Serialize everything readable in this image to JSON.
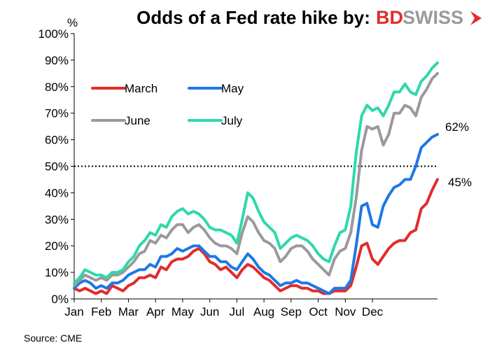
{
  "chart_data": {
    "type": "line",
    "title": "Odds of a Fed rate hike by:",
    "ylabel": "%",
    "ylim": [
      0,
      100
    ],
    "yticks": [
      "0%",
      "10%",
      "20%",
      "30%",
      "40%",
      "50%",
      "60%",
      "70%",
      "80%",
      "90%",
      "100%"
    ],
    "xticks": [
      "Jan",
      "Feb",
      "Mar",
      "Apr",
      "May",
      "Jun",
      "Jul",
      "Aug",
      "Sep",
      "Oct",
      "Nov",
      "Dec"
    ],
    "reference_line": {
      "y": 50,
      "style": "dotted"
    },
    "grid": false,
    "legend_position": "top-left",
    "series": [
      {
        "name": "March",
        "color": "#e32b2b",
        "points": [
          [
            0,
            4
          ],
          [
            0.2,
            3
          ],
          [
            0.4,
            4
          ],
          [
            0.6,
            3
          ],
          [
            0.8,
            2
          ],
          [
            1,
            3
          ],
          [
            1.2,
            2
          ],
          [
            1.4,
            5
          ],
          [
            1.6,
            4
          ],
          [
            1.8,
            3
          ],
          [
            2,
            5
          ],
          [
            2.2,
            6
          ],
          [
            2.4,
            8
          ],
          [
            2.6,
            8
          ],
          [
            2.8,
            9
          ],
          [
            3,
            8
          ],
          [
            3.2,
            12
          ],
          [
            3.4,
            11
          ],
          [
            3.6,
            14
          ],
          [
            3.8,
            15
          ],
          [
            4,
            15
          ],
          [
            4.2,
            16
          ],
          [
            4.4,
            18
          ],
          [
            4.6,
            19
          ],
          [
            4.8,
            17
          ],
          [
            5,
            14
          ],
          [
            5.2,
            13
          ],
          [
            5.4,
            11
          ],
          [
            5.6,
            12
          ],
          [
            5.8,
            10
          ],
          [
            6,
            8
          ],
          [
            6.2,
            11
          ],
          [
            6.4,
            13
          ],
          [
            6.6,
            12
          ],
          [
            6.8,
            10
          ],
          [
            7,
            8
          ],
          [
            7.2,
            7
          ],
          [
            7.4,
            5
          ],
          [
            7.6,
            3
          ],
          [
            7.8,
            4
          ],
          [
            8,
            5
          ],
          [
            8.2,
            5
          ],
          [
            8.4,
            4
          ],
          [
            8.6,
            4
          ],
          [
            8.8,
            3
          ],
          [
            9,
            3
          ],
          [
            9.2,
            2
          ],
          [
            9.4,
            2
          ],
          [
            9.6,
            3
          ],
          [
            9.8,
            3
          ],
          [
            10,
            3
          ],
          [
            10.2,
            5
          ],
          [
            10.4,
            12
          ],
          [
            10.6,
            20
          ],
          [
            10.8,
            21
          ],
          [
            11,
            15
          ],
          [
            11.2,
            13
          ],
          [
            11.4,
            16
          ],
          [
            11.6,
            19
          ],
          [
            11.8,
            21
          ],
          [
            12,
            22
          ],
          [
            12.2,
            22
          ],
          [
            12.4,
            25
          ],
          [
            12.6,
            26
          ],
          [
            12.8,
            34
          ],
          [
            13,
            36
          ],
          [
            13.2,
            41
          ],
          [
            13.4,
            45
          ]
        ]
      },
      {
        "name": "May",
        "color": "#1e78e6",
        "points": [
          [
            0,
            4
          ],
          [
            0.2,
            6
          ],
          [
            0.4,
            7
          ],
          [
            0.6,
            6
          ],
          [
            0.8,
            4
          ],
          [
            1,
            5
          ],
          [
            1.2,
            4
          ],
          [
            1.4,
            6
          ],
          [
            1.6,
            6
          ],
          [
            1.8,
            7
          ],
          [
            2,
            9
          ],
          [
            2.2,
            10
          ],
          [
            2.4,
            11
          ],
          [
            2.6,
            11
          ],
          [
            2.8,
            13
          ],
          [
            3,
            12
          ],
          [
            3.2,
            16
          ],
          [
            3.4,
            16
          ],
          [
            3.6,
            17
          ],
          [
            3.8,
            19
          ],
          [
            4,
            18
          ],
          [
            4.2,
            19
          ],
          [
            4.4,
            20
          ],
          [
            4.6,
            20
          ],
          [
            4.8,
            18
          ],
          [
            5,
            16
          ],
          [
            5.2,
            16
          ],
          [
            5.4,
            14
          ],
          [
            5.6,
            14
          ],
          [
            5.8,
            12
          ],
          [
            6,
            11
          ],
          [
            6.2,
            14
          ],
          [
            6.4,
            17
          ],
          [
            6.6,
            15
          ],
          [
            6.8,
            12
          ],
          [
            7,
            10
          ],
          [
            7.2,
            9
          ],
          [
            7.4,
            7
          ],
          [
            7.6,
            5
          ],
          [
            7.8,
            6
          ],
          [
            8,
            6
          ],
          [
            8.2,
            7
          ],
          [
            8.4,
            6
          ],
          [
            8.6,
            6
          ],
          [
            8.8,
            5
          ],
          [
            9,
            4
          ],
          [
            9.2,
            3
          ],
          [
            9.4,
            2
          ],
          [
            9.6,
            4
          ],
          [
            9.8,
            4
          ],
          [
            10,
            4
          ],
          [
            10.2,
            7
          ],
          [
            10.4,
            20
          ],
          [
            10.6,
            35
          ],
          [
            10.8,
            36
          ],
          [
            11,
            28
          ],
          [
            11.2,
            27
          ],
          [
            11.4,
            35
          ],
          [
            11.6,
            39
          ],
          [
            11.8,
            42
          ],
          [
            12,
            43
          ],
          [
            12.2,
            45
          ],
          [
            12.4,
            45
          ],
          [
            12.6,
            50
          ],
          [
            12.8,
            57
          ],
          [
            13,
            59
          ],
          [
            13.2,
            61
          ],
          [
            13.4,
            62
          ]
        ]
      },
      {
        "name": "June",
        "color": "#9a9a9a",
        "points": [
          [
            0,
            5
          ],
          [
            0.2,
            7
          ],
          [
            0.4,
            9
          ],
          [
            0.6,
            8
          ],
          [
            0.8,
            7
          ],
          [
            1,
            8
          ],
          [
            1.2,
            7
          ],
          [
            1.4,
            9
          ],
          [
            1.6,
            9
          ],
          [
            1.8,
            10
          ],
          [
            2,
            12
          ],
          [
            2.2,
            14
          ],
          [
            2.4,
            17
          ],
          [
            2.6,
            18
          ],
          [
            2.8,
            22
          ],
          [
            3,
            21
          ],
          [
            3.2,
            24
          ],
          [
            3.4,
            23
          ],
          [
            3.6,
            26
          ],
          [
            3.8,
            28
          ],
          [
            4,
            28
          ],
          [
            4.2,
            25
          ],
          [
            4.4,
            27
          ],
          [
            4.6,
            28
          ],
          [
            4.8,
            26
          ],
          [
            5,
            23
          ],
          [
            5.2,
            21
          ],
          [
            5.4,
            20
          ],
          [
            5.6,
            20
          ],
          [
            5.8,
            19
          ],
          [
            6,
            17
          ],
          [
            6.2,
            25
          ],
          [
            6.4,
            31
          ],
          [
            6.6,
            29
          ],
          [
            6.8,
            25
          ],
          [
            7,
            22
          ],
          [
            7.2,
            21
          ],
          [
            7.4,
            19
          ],
          [
            7.6,
            14
          ],
          [
            7.8,
            16
          ],
          [
            8,
            19
          ],
          [
            8.2,
            20
          ],
          [
            8.4,
            20
          ],
          [
            8.6,
            18
          ],
          [
            8.8,
            15
          ],
          [
            9,
            13
          ],
          [
            9.2,
            11
          ],
          [
            9.4,
            9
          ],
          [
            9.6,
            15
          ],
          [
            9.8,
            18
          ],
          [
            10,
            19
          ],
          [
            10.2,
            25
          ],
          [
            10.4,
            38
          ],
          [
            10.6,
            56
          ],
          [
            10.8,
            65
          ],
          [
            11,
            64
          ],
          [
            11.2,
            65
          ],
          [
            11.4,
            58
          ],
          [
            11.6,
            62
          ],
          [
            11.8,
            70
          ],
          [
            12,
            70
          ],
          [
            12.2,
            73
          ],
          [
            12.4,
            72
          ],
          [
            12.6,
            69
          ],
          [
            12.8,
            76
          ],
          [
            13,
            79
          ],
          [
            13.2,
            83
          ],
          [
            13.4,
            85
          ]
        ]
      },
      {
        "name": "July",
        "color": "#2fd8ab",
        "points": [
          [
            0,
            6
          ],
          [
            0.2,
            8
          ],
          [
            0.4,
            11
          ],
          [
            0.6,
            10
          ],
          [
            0.8,
            9
          ],
          [
            1,
            9
          ],
          [
            1.2,
            8
          ],
          [
            1.4,
            10
          ],
          [
            1.6,
            10
          ],
          [
            1.8,
            11
          ],
          [
            2,
            14
          ],
          [
            2.2,
            16
          ],
          [
            2.4,
            20
          ],
          [
            2.6,
            22
          ],
          [
            2.8,
            25
          ],
          [
            3,
            24
          ],
          [
            3.2,
            28
          ],
          [
            3.4,
            27
          ],
          [
            3.6,
            31
          ],
          [
            3.8,
            33
          ],
          [
            4,
            34
          ],
          [
            4.2,
            32
          ],
          [
            4.4,
            33
          ],
          [
            4.6,
            32
          ],
          [
            4.8,
            30
          ],
          [
            5,
            27
          ],
          [
            5.2,
            26
          ],
          [
            5.4,
            26
          ],
          [
            5.6,
            25
          ],
          [
            5.8,
            24
          ],
          [
            6,
            21
          ],
          [
            6.2,
            30
          ],
          [
            6.4,
            40
          ],
          [
            6.6,
            38
          ],
          [
            6.8,
            33
          ],
          [
            7,
            29
          ],
          [
            7.2,
            27
          ],
          [
            7.4,
            25
          ],
          [
            7.6,
            19
          ],
          [
            7.8,
            21
          ],
          [
            8,
            23
          ],
          [
            8.2,
            24
          ],
          [
            8.4,
            23
          ],
          [
            8.6,
            22
          ],
          [
            8.8,
            20
          ],
          [
            9,
            17
          ],
          [
            9.2,
            15
          ],
          [
            9.4,
            14
          ],
          [
            9.6,
            20
          ],
          [
            9.8,
            25
          ],
          [
            10,
            26
          ],
          [
            10.2,
            35
          ],
          [
            10.4,
            55
          ],
          [
            10.6,
            69
          ],
          [
            10.8,
            73
          ],
          [
            11,
            71
          ],
          [
            11.2,
            72
          ],
          [
            11.4,
            69
          ],
          [
            11.6,
            73
          ],
          [
            11.8,
            78
          ],
          [
            12,
            78
          ],
          [
            12.2,
            81
          ],
          [
            12.4,
            78
          ],
          [
            12.6,
            77
          ],
          [
            12.8,
            82
          ],
          [
            13,
            84
          ],
          [
            13.2,
            87
          ],
          [
            13.4,
            89
          ]
        ]
      }
    ],
    "annotations": [
      {
        "text": "62%",
        "series": "May"
      },
      {
        "text": "45%",
        "series": "March"
      }
    ],
    "source": "Source: CME"
  },
  "logo": {
    "part1": "BD",
    "part2": "SWISS",
    "part1_color": "#e32b2b",
    "part2_color": "#9a9a9a"
  }
}
